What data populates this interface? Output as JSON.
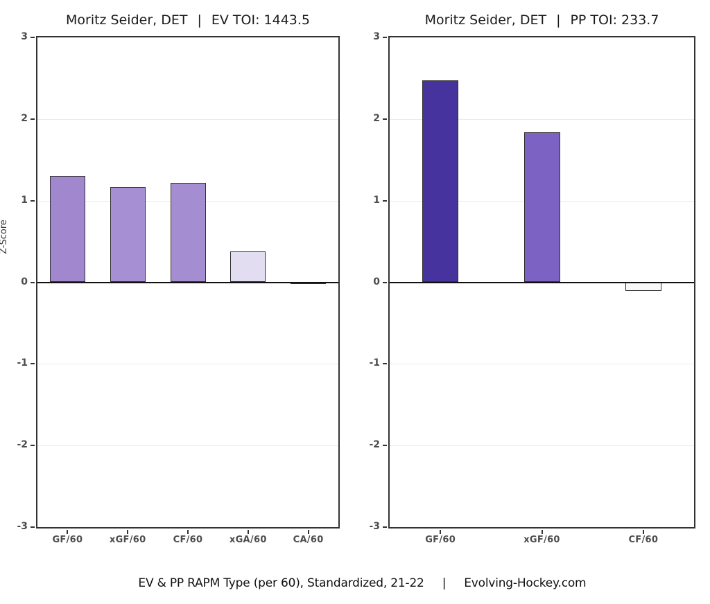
{
  "page": {
    "background": "#ffffff",
    "caption_left": "EV & PP RAPM Type (per 60), Standardized, 21-22",
    "caption_sep": "|",
    "caption_right": "Evolving-Hockey.com"
  },
  "style": {
    "panel_border_color": "#333333",
    "grid_color": "#ebebeb",
    "zero_line_color": "#111111",
    "bar_border_color": "#2f2f2f",
    "tick_color": "#333333",
    "tick_label_color": "#4d4d4d",
    "title_color": "#1a1a1a"
  },
  "chart_data": [
    {
      "type": "bar",
      "title": "Moritz Seider, DET | EV TOI: 1443.5",
      "title_name": "Moritz Seider, DET",
      "title_sep": "|",
      "title_stat": "EV TOI: 1443.5",
      "xlabel": "",
      "ylabel": "Z-Score",
      "ylim": [
        -3,
        3
      ],
      "yticks": [
        3,
        2,
        1,
        0,
        -1,
        -2,
        -3
      ],
      "grid": "horizontal gridlines at integers, solid black line at 0",
      "legend": "none",
      "categories": [
        "GF/60",
        "xGF/60",
        "CF/60",
        "xGA/60",
        "CA/60"
      ],
      "values": [
        1.3,
        1.17,
        1.22,
        0.38,
        -0.02
      ],
      "bar_colors": [
        "#a188ce",
        "#a78fd3",
        "#a58dd1",
        "#e3ddf1",
        "#fdfdfe"
      ]
    },
    {
      "type": "bar",
      "title": "Moritz Seider, DET | PP TOI: 233.7",
      "title_name": "Moritz Seider, DET",
      "title_sep": "|",
      "title_stat": "PP TOI: 233.7",
      "xlabel": "",
      "ylabel": "",
      "ylim": [
        -3,
        3
      ],
      "yticks": [
        3,
        2,
        1,
        0,
        -1,
        -2,
        -3
      ],
      "grid": "horizontal gridlines at integers, solid black line at 0",
      "legend": "none",
      "categories": [
        "GF/60",
        "xGF/60",
        "CF/60"
      ],
      "values": [
        2.47,
        1.84,
        -0.11
      ],
      "bar_colors": [
        "#47339e",
        "#7c63c3",
        "#f9f8fb"
      ]
    }
  ]
}
